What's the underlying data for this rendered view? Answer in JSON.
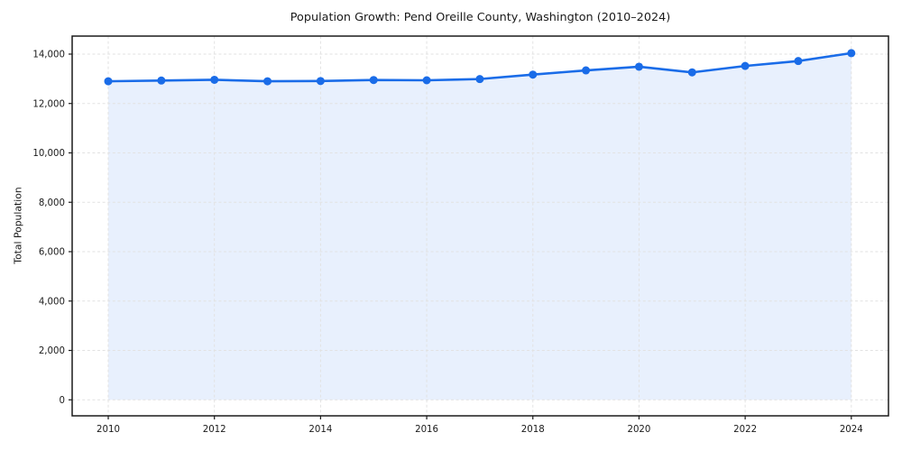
{
  "figure": {
    "title": "Population Growth: Pend Oreille County, Washington (2010–2024)",
    "ylabel": "Total Population"
  },
  "chart_data": {
    "type": "line",
    "title": "Population Growth: Pend Oreille County, Washington (2010–2024)",
    "xlabel": "",
    "ylabel": "Total Population",
    "x": [
      2010,
      2011,
      2012,
      2013,
      2014,
      2015,
      2016,
      2017,
      2018,
      2019,
      2020,
      2021,
      2022,
      2023,
      2024
    ],
    "series": [
      {
        "name": "Total Population",
        "values": [
          12900,
          12930,
          12960,
          12900,
          12910,
          12950,
          12940,
          12990,
          13170,
          13340,
          13490,
          13260,
          13520,
          13720,
          14040
        ]
      }
    ],
    "xticks": {
      "values": [
        2010,
        2012,
        2014,
        2016,
        2018,
        2020,
        2022,
        2024
      ],
      "labels": [
        "2010",
        "2012",
        "2014",
        "2016",
        "2018",
        "2020",
        "2022",
        "2024"
      ]
    },
    "yticks": {
      "values": [
        0,
        2000,
        4000,
        6000,
        8000,
        10000,
        12000,
        14000
      ],
      "labels": [
        "0",
        "2,000",
        "4,000",
        "6,000",
        "8,000",
        "10,000",
        "12,000",
        "14,000"
      ]
    },
    "xlim": [
      2009.32,
      2024.7
    ],
    "ylim": [
      -648,
      14730
    ],
    "grid": true,
    "grid_style": "dashed",
    "legend": false,
    "marker": "circle",
    "line_color": "#1a6ce8",
    "fill_color": "rgba(26,108,232,0.10)",
    "grid_color": "#e2e2e2",
    "spine_color": "#1a1a1a",
    "tick_label_color": "#1a1a1a",
    "background_color": "#ffffff"
  }
}
